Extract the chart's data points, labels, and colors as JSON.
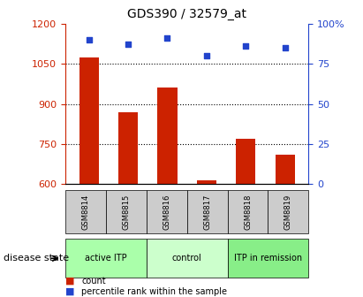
{
  "title": "GDS390 / 32579_at",
  "samples": [
    "GSM8814",
    "GSM8815",
    "GSM8816",
    "GSM8817",
    "GSM8818",
    "GSM8819"
  ],
  "counts": [
    1075,
    870,
    960,
    615,
    770,
    710
  ],
  "percentile_ranks": [
    90,
    87,
    91,
    80,
    86,
    85
  ],
  "ylim_left": [
    600,
    1200
  ],
  "ylim_right": [
    0,
    100
  ],
  "yticks_left": [
    600,
    750,
    900,
    1050,
    1200
  ],
  "yticks_right": [
    0,
    25,
    50,
    75,
    100
  ],
  "bar_color": "#cc2200",
  "dot_color": "#2244cc",
  "bar_width": 0.5,
  "group_spans": [
    [
      0,
      1,
      "active ITP",
      "#aaffaa"
    ],
    [
      2,
      3,
      "control",
      "#ccffcc"
    ],
    [
      4,
      5,
      "ITP in remission",
      "#88ee88"
    ]
  ],
  "disease_state_label": "disease state",
  "legend_count_label": "count",
  "legend_percentile_label": "percentile rank within the sample",
  "tick_label_color_left": "#cc2200",
  "tick_label_color_right": "#2244cc",
  "bg_color": "#ffffff",
  "plot_bg_color": "#ffffff"
}
